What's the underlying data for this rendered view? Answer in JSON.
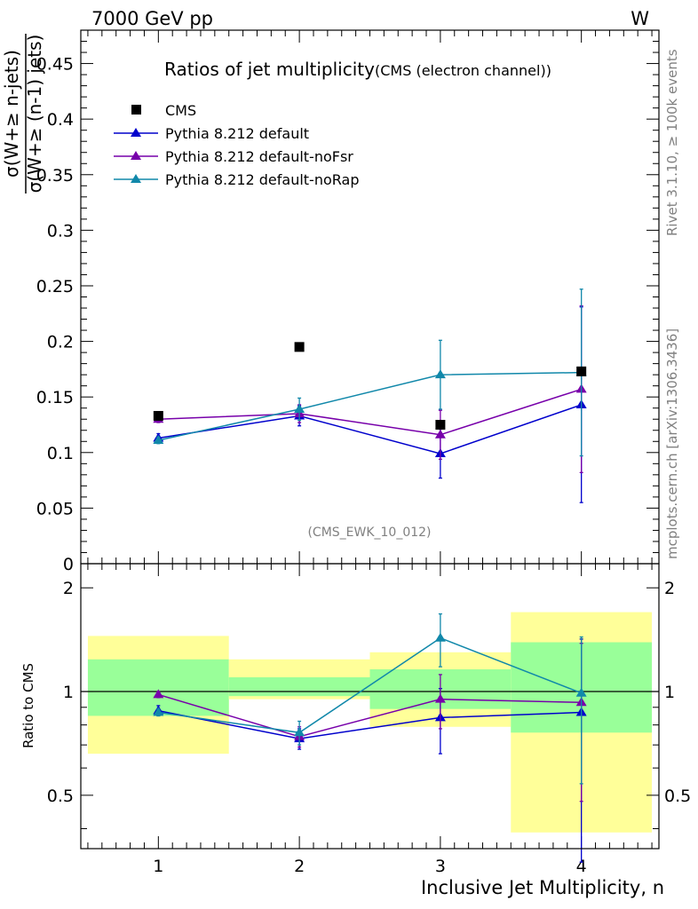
{
  "header": {
    "energy_label": "7000 GeV pp",
    "process_label": "W"
  },
  "side_labels": {
    "rivet": "Rivet 3.1.10, ≥ 100k events",
    "mcplots": "mcplots.cern.ch [arXiv:1306.3436]"
  },
  "chart_data": [
    {
      "type": "scatter",
      "panel": "main",
      "title": "Ratios of jet multiplicity",
      "subtitle": "(CMS (electron channel))",
      "ylabel_numerator": "σ(W+≥ n-jets)",
      "ylabel_denominator": "σ(W+≥ (n-1) jets)",
      "xlabel": "Inclusive Jet Multiplicity, n",
      "analysis_tag": "(CMS_EWK_10_012)",
      "xlim": [
        0.45,
        4.55
      ],
      "ylim": [
        0,
        0.48
      ],
      "yticks": [
        0,
        0.05,
        0.1,
        0.15,
        0.2,
        0.25,
        0.3,
        0.35,
        0.4,
        0.45
      ],
      "ytick_labels": [
        "0",
        "0.05",
        "0.1",
        "0.15",
        "0.2",
        "0.25",
        "0.3",
        "0.35",
        "0.4",
        "0.45"
      ],
      "xticks": [
        1,
        2,
        3,
        4
      ],
      "xtick_labels": [
        "1",
        "2",
        "3",
        "4"
      ],
      "legend": [
        {
          "label": "CMS",
          "color": "#000000",
          "marker": "square"
        },
        {
          "label": "Pythia 8.212 default",
          "color": "#0000cc",
          "marker": "triangle"
        },
        {
          "label": "Pythia 8.212 default-noFsr",
          "color": "#7700aa",
          "marker": "triangle"
        },
        {
          "label": "Pythia 8.212 default-noRap",
          "color": "#1188aa",
          "marker": "triangle"
        }
      ],
      "series": [
        {
          "name": "CMS",
          "color": "#000000",
          "marker": "square",
          "line": false,
          "x": [
            1,
            2,
            3,
            4
          ],
          "y": [
            0.133,
            0.195,
            0.125,
            0.173
          ],
          "err": [
            0,
            0,
            0,
            0
          ]
        },
        {
          "name": "Pythia 8.212 default",
          "color": "#0000cc",
          "marker": "triangle",
          "line": true,
          "x": [
            1,
            2,
            3,
            4
          ],
          "y": [
            0.113,
            0.133,
            0.099,
            0.143
          ],
          "err": [
            0.004,
            0.009,
            0.022,
            0.088
          ]
        },
        {
          "name": "Pythia 8.212 default-noFsr",
          "color": "#7700aa",
          "marker": "triangle",
          "line": true,
          "x": [
            1,
            2,
            3,
            4
          ],
          "y": [
            0.13,
            0.135,
            0.116,
            0.157
          ],
          "err": [
            0.003,
            0.008,
            0.022,
            0.075
          ]
        },
        {
          "name": "Pythia 8.212 default-noRap",
          "color": "#1188aa",
          "marker": "triangle",
          "line": true,
          "x": [
            1,
            2,
            3,
            4
          ],
          "y": [
            0.111,
            0.139,
            0.17,
            0.172
          ],
          "err": [
            0.003,
            0.01,
            0.031,
            0.075
          ]
        }
      ]
    },
    {
      "type": "scatter",
      "panel": "ratio",
      "ylabel": "Ratio to CMS",
      "xlabel": "Inclusive Jet Multiplicity, n",
      "scale": "log",
      "xlim": [
        0.45,
        4.55
      ],
      "ylim": [
        0.35,
        2.35
      ],
      "yticks": [
        0.5,
        1,
        2
      ],
      "ytick_labels": [
        "0.5",
        "1",
        "2"
      ],
      "xticks": [
        1,
        2,
        3,
        4
      ],
      "xtick_labels": [
        "1",
        "2",
        "3",
        "4"
      ],
      "bands": [
        {
          "xmin": 0.5,
          "xmax": 1.5,
          "yellow": [
            0.66,
            1.45
          ],
          "green": [
            0.85,
            1.24
          ]
        },
        {
          "xmin": 1.5,
          "xmax": 2.5,
          "yellow": [
            0.95,
            1.24
          ],
          "green": [
            0.97,
            1.1
          ]
        },
        {
          "xmin": 2.5,
          "xmax": 3.5,
          "yellow": [
            0.79,
            1.3
          ],
          "green": [
            0.89,
            1.16
          ]
        },
        {
          "xmin": 3.5,
          "xmax": 4.5,
          "yellow": [
            0.39,
            1.7
          ],
          "green": [
            0.76,
            1.39
          ]
        }
      ],
      "series": [
        {
          "name": "Pythia 8.212 default",
          "color": "#0000cc",
          "x": [
            1,
            2,
            3,
            4
          ],
          "y": [
            0.88,
            0.73,
            0.84,
            0.87
          ],
          "err": [
            0.03,
            0.05,
            0.18,
            0.55
          ]
        },
        {
          "name": "Pythia 8.212 default-noFsr",
          "color": "#7700aa",
          "x": [
            1,
            2,
            3,
            4
          ],
          "y": [
            0.98,
            0.74,
            0.95,
            0.93
          ],
          "err": [
            0.02,
            0.05,
            0.17,
            0.45
          ]
        },
        {
          "name": "Pythia 8.212 default-noRap",
          "color": "#1188aa",
          "x": [
            1,
            2,
            3,
            4
          ],
          "y": [
            0.87,
            0.76,
            1.43,
            0.99
          ],
          "err": [
            0.02,
            0.06,
            0.25,
            0.45
          ]
        }
      ]
    }
  ]
}
